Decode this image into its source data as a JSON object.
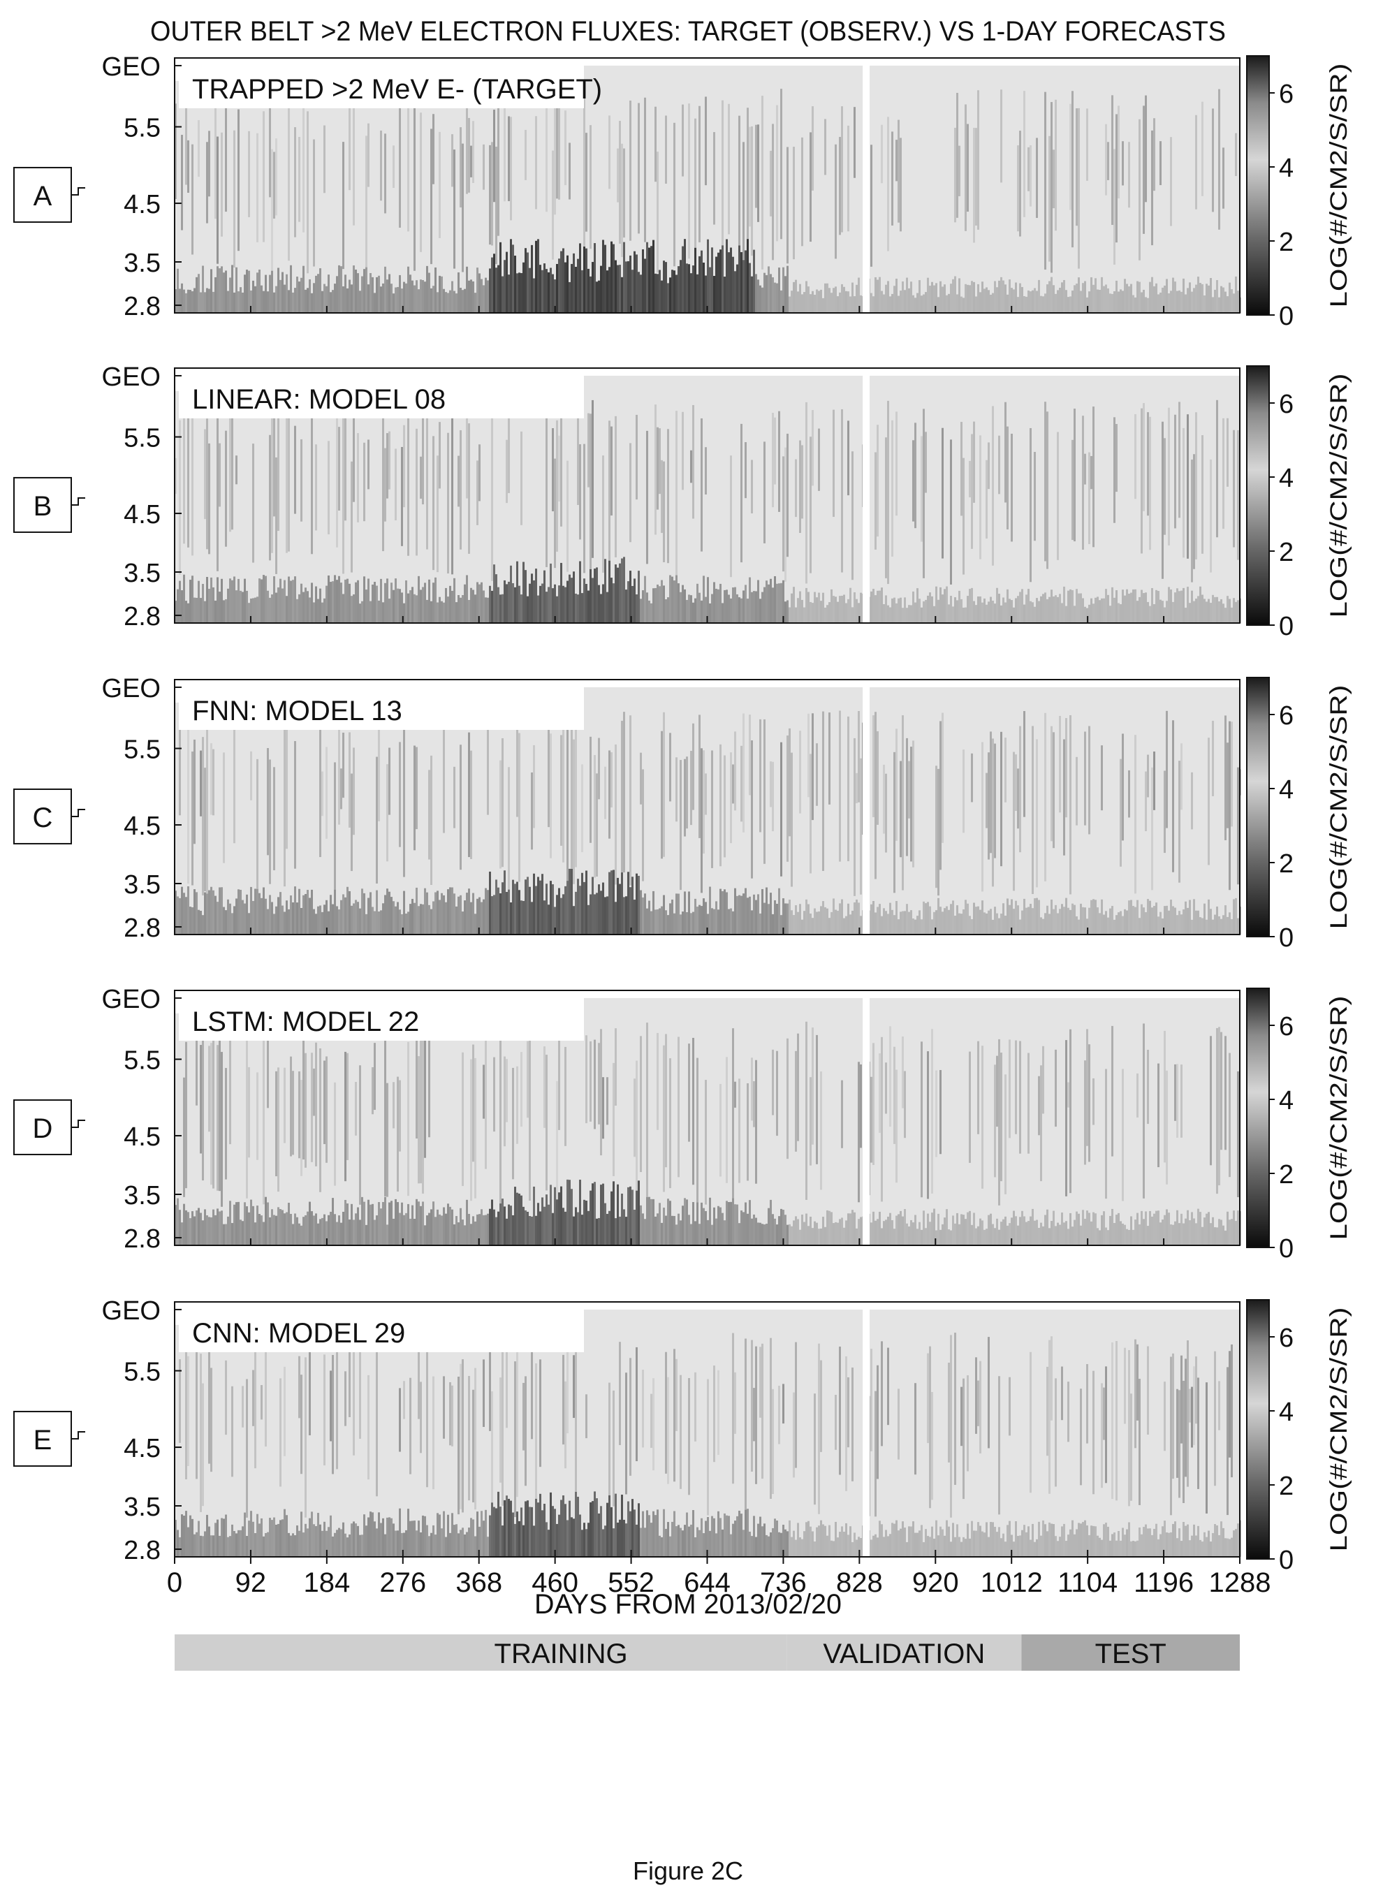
{
  "chart_data": {
    "type": "heatmap",
    "title": "OUTER BELT >2 MeV ELECTRON FLUXES: TARGET (OBSERV.) VS 1-DAY FORECASTS",
    "xlabel": "DAYS FROM 2013/02/20",
    "x_ticks": [
      "0",
      "92",
      "184",
      "276",
      "368",
      "460",
      "552",
      "644",
      "736",
      "828",
      "920",
      "1012",
      "1104",
      "1196",
      "1288"
    ],
    "xlim": [
      0,
      1288
    ],
    "y_ticks": [
      "GEO",
      "5.5",
      "4.5",
      "3.5",
      "2.8"
    ],
    "colorbar": {
      "label": "LOG(#/CM2/S/SR)",
      "ticks": [
        "6",
        "4",
        "2",
        "0"
      ],
      "range": [
        0,
        7
      ]
    },
    "panels": [
      {
        "letter": "A",
        "label": "TRAPPED >2 MeV E- (TARGET)"
      },
      {
        "letter": "B",
        "label": "LINEAR: MODEL 08"
      },
      {
        "letter": "C",
        "label": "FNN: MODEL 13"
      },
      {
        "letter": "D",
        "label": "LSTM: MODEL 22"
      },
      {
        "letter": "E",
        "label": "CNN: MODEL 29"
      }
    ],
    "periods": [
      {
        "label": "TRAINING",
        "start": 0,
        "end": 740
      },
      {
        "label": "VALIDATION",
        "start": 740,
        "end": 1024
      },
      {
        "label": "TEST",
        "start": 1024,
        "end": 1288
      }
    ]
  },
  "figure_caption": "Figure 2C"
}
